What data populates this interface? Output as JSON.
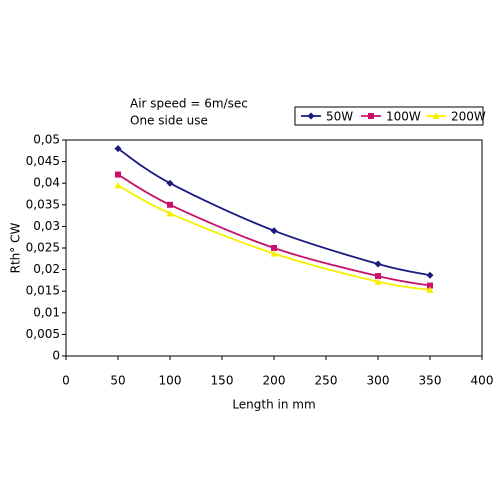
{
  "chart_data": {
    "type": "line",
    "annotations": [
      "Air speed = 6m/sec",
      "One side use"
    ],
    "x_label": "Length in mm",
    "y_label": "Rth° CW",
    "x": [
      50,
      100,
      200,
      300,
      350
    ],
    "series": [
      {
        "name": "50W",
        "color": "#1a1a80",
        "marker": "diamond",
        "values": [
          0.048,
          0.04,
          0.029,
          0.0213,
          0.0187
        ]
      },
      {
        "name": "100W",
        "color": "#c8106a",
        "marker": "square",
        "values": [
          0.042,
          0.035,
          0.025,
          0.0185,
          0.0163
        ]
      },
      {
        "name": "200W",
        "color": "#f5f000",
        "marker": "triangle",
        "values": [
          0.0395,
          0.033,
          0.0237,
          0.0172,
          0.0153
        ]
      }
    ],
    "xlim": [
      0,
      400
    ],
    "xticks": [
      0,
      50,
      100,
      150,
      200,
      250,
      300,
      350,
      400
    ],
    "ylim": [
      0,
      0.05
    ],
    "yticks": [
      0,
      {
        "value": 0.005,
        "label": "0,005"
      },
      {
        "value": 0.01,
        "label": "0,01"
      },
      {
        "value": 0.015,
        "label": "0,015"
      },
      {
        "value": 0.02,
        "label": "0,02"
      },
      {
        "value": 0.025,
        "label": "0,025"
      },
      {
        "value": 0.03,
        "label": "0,03"
      },
      {
        "value": 0.035,
        "label": "0,035"
      },
      {
        "value": 0.04,
        "label": "0,04"
      },
      {
        "value": 0.045,
        "label": "0,045"
      },
      {
        "value": 0.05,
        "label": "0,05"
      }
    ],
    "grid": false,
    "legend": "top-right"
  }
}
